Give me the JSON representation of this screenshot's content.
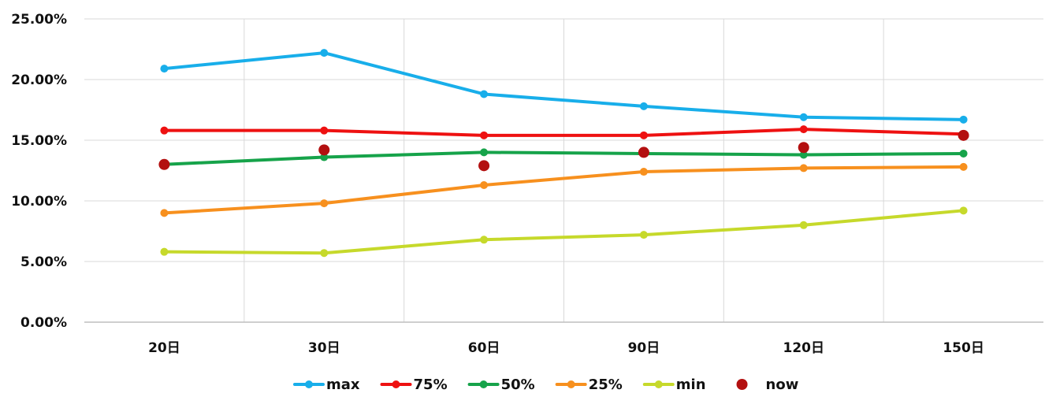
{
  "chart_data": {
    "type": "line",
    "categories": [
      "20日",
      "30日",
      "60日",
      "90日",
      "120日",
      "150日"
    ],
    "ylim": [
      0,
      0.25
    ],
    "y_ticks": [
      "0.00%",
      "5.00%",
      "10.00%",
      "15.00%",
      "20.00%",
      "25.00%"
    ],
    "grid": true,
    "legend_position": "bottom",
    "series": [
      {
        "name": "max",
        "color": "#18AEEA",
        "marker": "circle",
        "line": true,
        "values": [
          0.209,
          0.222,
          0.188,
          0.178,
          0.169,
          0.167
        ]
      },
      {
        "name": "75%",
        "color": "#EE1111",
        "marker": "circle",
        "line": true,
        "values": [
          0.158,
          0.158,
          0.154,
          0.154,
          0.159,
          0.155
        ]
      },
      {
        "name": "50%",
        "color": "#16A34A",
        "marker": "circle",
        "line": true,
        "values": [
          0.13,
          0.136,
          0.14,
          0.139,
          0.138,
          0.139
        ]
      },
      {
        "name": "25%",
        "color": "#F7901E",
        "marker": "circle",
        "line": true,
        "values": [
          0.09,
          0.098,
          0.113,
          0.124,
          0.127,
          0.128
        ]
      },
      {
        "name": "min",
        "color": "#C6D92B",
        "marker": "circle",
        "line": true,
        "values": [
          0.058,
          0.057,
          0.068,
          0.072,
          0.08,
          0.092
        ]
      },
      {
        "name": "now",
        "color": "#B31010",
        "marker": "circle",
        "line": false,
        "values": [
          0.13,
          0.142,
          0.129,
          0.14,
          0.144,
          0.154
        ]
      }
    ]
  }
}
